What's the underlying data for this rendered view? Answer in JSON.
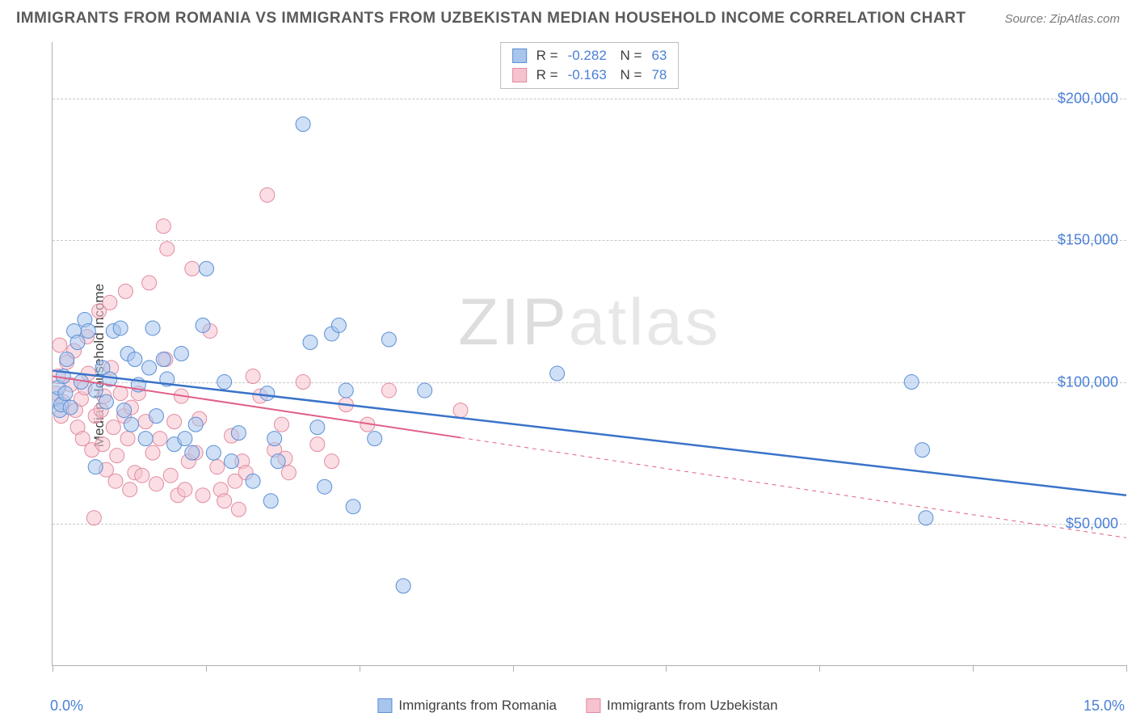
{
  "title": "IMMIGRANTS FROM ROMANIA VS IMMIGRANTS FROM UZBEKISTAN MEDIAN HOUSEHOLD INCOME CORRELATION CHART",
  "source": "Source: ZipAtlas.com",
  "ylabel": "Median Household Income",
  "xmin_label": "0.0%",
  "xmax_label": "15.0%",
  "watermark": {
    "z": "ZIP",
    "rest": "atlas"
  },
  "chart": {
    "type": "scatter-with-regression",
    "xlim": [
      0,
      15
    ],
    "ylim": [
      0,
      220000
    ],
    "background_color": "#ffffff",
    "grid_color": "#c8c8c8",
    "grid_dash": "4,4",
    "axis_color": "#b0b0b0",
    "yticks": [
      50000,
      100000,
      150000,
      200000
    ],
    "ytick_labels": [
      "$50,000",
      "$100,000",
      "$150,000",
      "$200,000"
    ],
    "xticks": [
      0,
      2.14,
      4.29,
      6.43,
      8.57,
      10.71,
      12.86,
      15
    ],
    "marker_radius": 9,
    "marker_opacity": 0.55,
    "series": [
      {
        "name": "Immigrants from Romania",
        "color_fill": "#a8c5ec",
        "color_stroke": "#5a8fd6",
        "R": "-0.282",
        "N": "63",
        "regression": {
          "x1": 0,
          "y1": 104000,
          "x2": 15,
          "y2": 60000,
          "color": "#3a73c9",
          "width": 2.5,
          "dash": "none"
        },
        "points": [
          [
            0.05,
            94000
          ],
          [
            0.08,
            98000
          ],
          [
            0.1,
            90000
          ],
          [
            0.12,
            92000
          ],
          [
            0.15,
            102000
          ],
          [
            0.18,
            96000
          ],
          [
            0.2,
            108000
          ],
          [
            0.25,
            91000
          ],
          [
            0.3,
            118000
          ],
          [
            0.35,
            114000
          ],
          [
            0.4,
            100000
          ],
          [
            0.45,
            122000
          ],
          [
            0.5,
            118000
          ],
          [
            0.6,
            97000
          ],
          [
            0.6,
            70000
          ],
          [
            0.7,
            105000
          ],
          [
            0.75,
            93000
          ],
          [
            0.8,
            101000
          ],
          [
            0.85,
            118000
          ],
          [
            0.95,
            119000
          ],
          [
            1.0,
            90000
          ],
          [
            1.05,
            110000
          ],
          [
            1.1,
            85000
          ],
          [
            1.15,
            108000
          ],
          [
            1.2,
            99000
          ],
          [
            1.3,
            80000
          ],
          [
            1.35,
            105000
          ],
          [
            1.4,
            119000
          ],
          [
            1.45,
            88000
          ],
          [
            1.55,
            108000
          ],
          [
            1.6,
            101000
          ],
          [
            1.7,
            78000
          ],
          [
            1.8,
            110000
          ],
          [
            1.85,
            80000
          ],
          [
            1.95,
            75000
          ],
          [
            2.0,
            85000
          ],
          [
            2.1,
            120000
          ],
          [
            2.15,
            140000
          ],
          [
            2.25,
            75000
          ],
          [
            2.4,
            100000
          ],
          [
            2.5,
            72000
          ],
          [
            2.6,
            82000
          ],
          [
            2.8,
            65000
          ],
          [
            3.0,
            96000
          ],
          [
            3.05,
            58000
          ],
          [
            3.1,
            80000
          ],
          [
            3.15,
            72000
          ],
          [
            3.5,
            191000
          ],
          [
            3.6,
            114000
          ],
          [
            3.7,
            84000
          ],
          [
            3.8,
            63000
          ],
          [
            3.9,
            117000
          ],
          [
            4.0,
            120000
          ],
          [
            4.1,
            97000
          ],
          [
            4.2,
            56000
          ],
          [
            4.5,
            80000
          ],
          [
            4.7,
            115000
          ],
          [
            4.9,
            28000
          ],
          [
            5.2,
            97000
          ],
          [
            7.05,
            103000
          ],
          [
            12.0,
            100000
          ],
          [
            12.15,
            76000
          ],
          [
            12.2,
            52000
          ]
        ]
      },
      {
        "name": "Immigrants from Uzbekistan",
        "color_fill": "#f5c2ce",
        "color_stroke": "#e38aa0",
        "R": "-0.163",
        "N": "78",
        "regression": {
          "x1": 0,
          "y1": 102000,
          "x2": 15,
          "y2": 45000,
          "color": "#e06088",
          "width": 2,
          "solid_until_x": 5.7,
          "dash": "5,5"
        },
        "points": [
          [
            0.05,
            96000
          ],
          [
            0.08,
            102000
          ],
          [
            0.1,
            113000
          ],
          [
            0.12,
            88000
          ],
          [
            0.15,
            93000
          ],
          [
            0.2,
            107000
          ],
          [
            0.25,
            99000
          ],
          [
            0.3,
            111000
          ],
          [
            0.32,
            90000
          ],
          [
            0.35,
            84000
          ],
          [
            0.4,
            94000
          ],
          [
            0.42,
            80000
          ],
          [
            0.45,
            98000
          ],
          [
            0.48,
            116000
          ],
          [
            0.5,
            103000
          ],
          [
            0.55,
            76000
          ],
          [
            0.58,
            52000
          ],
          [
            0.6,
            88000
          ],
          [
            0.65,
            125000
          ],
          [
            0.68,
            90000
          ],
          [
            0.7,
            78000
          ],
          [
            0.72,
            95000
          ],
          [
            0.75,
            69000
          ],
          [
            0.8,
            128000
          ],
          [
            0.82,
            105000
          ],
          [
            0.85,
            84000
          ],
          [
            0.88,
            65000
          ],
          [
            0.9,
            74000
          ],
          [
            0.95,
            96000
          ],
          [
            1.0,
            88000
          ],
          [
            1.02,
            132000
          ],
          [
            1.05,
            80000
          ],
          [
            1.08,
            62000
          ],
          [
            1.1,
            91000
          ],
          [
            1.15,
            68000
          ],
          [
            1.2,
            96000
          ],
          [
            1.25,
            67000
          ],
          [
            1.3,
            86000
          ],
          [
            1.35,
            135000
          ],
          [
            1.4,
            75000
          ],
          [
            1.45,
            64000
          ],
          [
            1.5,
            80000
          ],
          [
            1.55,
            155000
          ],
          [
            1.58,
            108000
          ],
          [
            1.6,
            147000
          ],
          [
            1.65,
            67000
          ],
          [
            1.7,
            86000
          ],
          [
            1.75,
            60000
          ],
          [
            1.8,
            95000
          ],
          [
            1.85,
            62000
          ],
          [
            1.9,
            72000
          ],
          [
            1.95,
            140000
          ],
          [
            2.0,
            75000
          ],
          [
            2.05,
            87000
          ],
          [
            2.1,
            60000
          ],
          [
            2.2,
            118000
          ],
          [
            2.3,
            70000
          ],
          [
            2.35,
            62000
          ],
          [
            2.4,
            58000
          ],
          [
            2.5,
            81000
          ],
          [
            2.55,
            65000
          ],
          [
            2.6,
            55000
          ],
          [
            2.65,
            72000
          ],
          [
            2.7,
            68000
          ],
          [
            2.8,
            102000
          ],
          [
            2.9,
            95000
          ],
          [
            3.0,
            166000
          ],
          [
            3.1,
            76000
          ],
          [
            3.2,
            85000
          ],
          [
            3.25,
            73000
          ],
          [
            3.3,
            68000
          ],
          [
            3.5,
            100000
          ],
          [
            3.7,
            78000
          ],
          [
            3.9,
            72000
          ],
          [
            4.1,
            92000
          ],
          [
            4.4,
            85000
          ],
          [
            4.7,
            97000
          ],
          [
            5.7,
            90000
          ]
        ]
      }
    ]
  },
  "legend_bottom": [
    {
      "label": "Immigrants from Romania",
      "fill": "#a8c5ec",
      "stroke": "#5a8fd6"
    },
    {
      "label": "Immigrants from Uzbekistan",
      "fill": "#f5c2ce",
      "stroke": "#e38aa0"
    }
  ]
}
